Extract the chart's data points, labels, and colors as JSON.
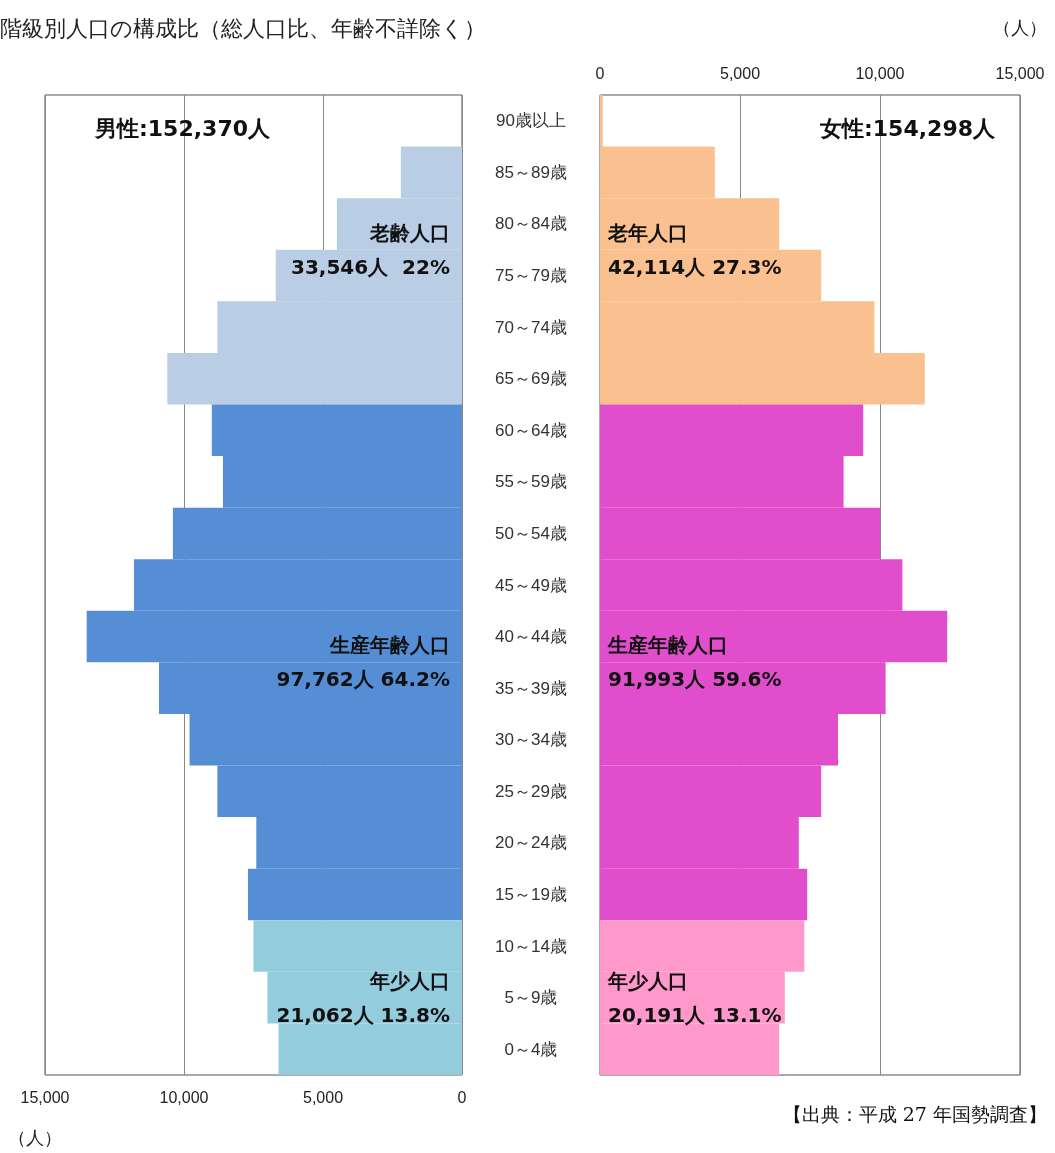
{
  "chart_data": [
    {
      "type": "bar",
      "orientation": "horizontal",
      "title": "階級別人口の構成比（総人口比、年齢不詳除く）",
      "subtitle": "男性:152,370人",
      "xlabel": "（人）",
      "categories": [
        null,
        null,
        null,
        null,
        null,
        null,
        null,
        null,
        null,
        null,
        null,
        null,
        null,
        null,
        null,
        null,
        null,
        null,
        null
      ],
      "values": [
        0,
        2200,
        4500,
        6700,
        8800,
        10600,
        9000,
        8600,
        10400,
        11800,
        13500,
        10900,
        9800,
        8800,
        7400,
        7700,
        7500,
        7000,
        6600
      ],
      "colors": [
        "#b9cde5",
        "#b9cde5",
        "#b9cde5",
        "#b9cde5",
        "#b9cde5",
        "#b9cde5",
        "#558ed5",
        "#558ed5",
        "#558ed5",
        "#558ed5",
        "#558ed5",
        "#558ed5",
        "#558ed5",
        "#558ed5",
        "#558ed5",
        "#558ed5",
        "#93cddd",
        "#93cddd",
        "#93cddd"
      ],
      "xlim": [
        15000,
        0
      ],
      "xticks": [
        {
          "value": 15000,
          "label": "15,000"
        },
        {
          "value": 10000,
          "label": "10,000"
        },
        {
          "value": 5000,
          "label": "5,000"
        },
        0
      ],
      "grid": "x",
      "tick_labels": "x",
      "annotations": [
        "老齢人口\n33,546人  22%",
        "生産年齢人口\n97,762人 64.2%",
        "年少人口\n21,062人 13.8%"
      ]
    },
    {
      "type": "bar",
      "orientation": "horizontal",
      "subtitle": "女性:154,298人",
      "xlabel": "（人）",
      "categories": [
        "90歳以上",
        "85～89歳",
        "80～84歳",
        "75～79歳",
        "70～74歳",
        "65～69歳",
        "60～64歳",
        "55～59歳",
        "50～54歳",
        "45～49歳",
        "40～44歳",
        "35～39歳",
        "30～34歳",
        "25～29歳",
        "20～24歳",
        "15～19歳",
        "10～14歳",
        "5～9歳",
        "0～4歳"
      ],
      "values": [
        100,
        4100,
        6400,
        7900,
        9800,
        11600,
        9400,
        8700,
        10000,
        10800,
        12400,
        10200,
        8500,
        7900,
        7100,
        7400,
        7300,
        6600,
        6400
      ],
      "colors": [
        "#fac090",
        "#fac090",
        "#fac090",
        "#fac090",
        "#fac090",
        "#fac090",
        "#e14ecc",
        "#e14ecc",
        "#e14ecc",
        "#e14ecc",
        "#e14ecc",
        "#e14ecc",
        "#e14ecc",
        "#e14ecc",
        "#e14ecc",
        "#e14ecc",
        "#ff99cc",
        "#ff99cc",
        "#ff99cc"
      ],
      "xlim": [
        0,
        15000
      ],
      "xticks": [
        0,
        {
          "value": 5000,
          "label": "5,000"
        },
        {
          "value": 10000,
          "label": "10,000"
        },
        {
          "value": 15000,
          "label": "15,000"
        }
      ],
      "grid": "x",
      "annotations": [
        "老年人口\n42,114人 27.3%",
        "生産年齢人口\n91,993人 59.6%",
        "年少人口\n20,191人 13.1%",
        "【出典：平成 27 年国勢調査】"
      ]
    }
  ]
}
